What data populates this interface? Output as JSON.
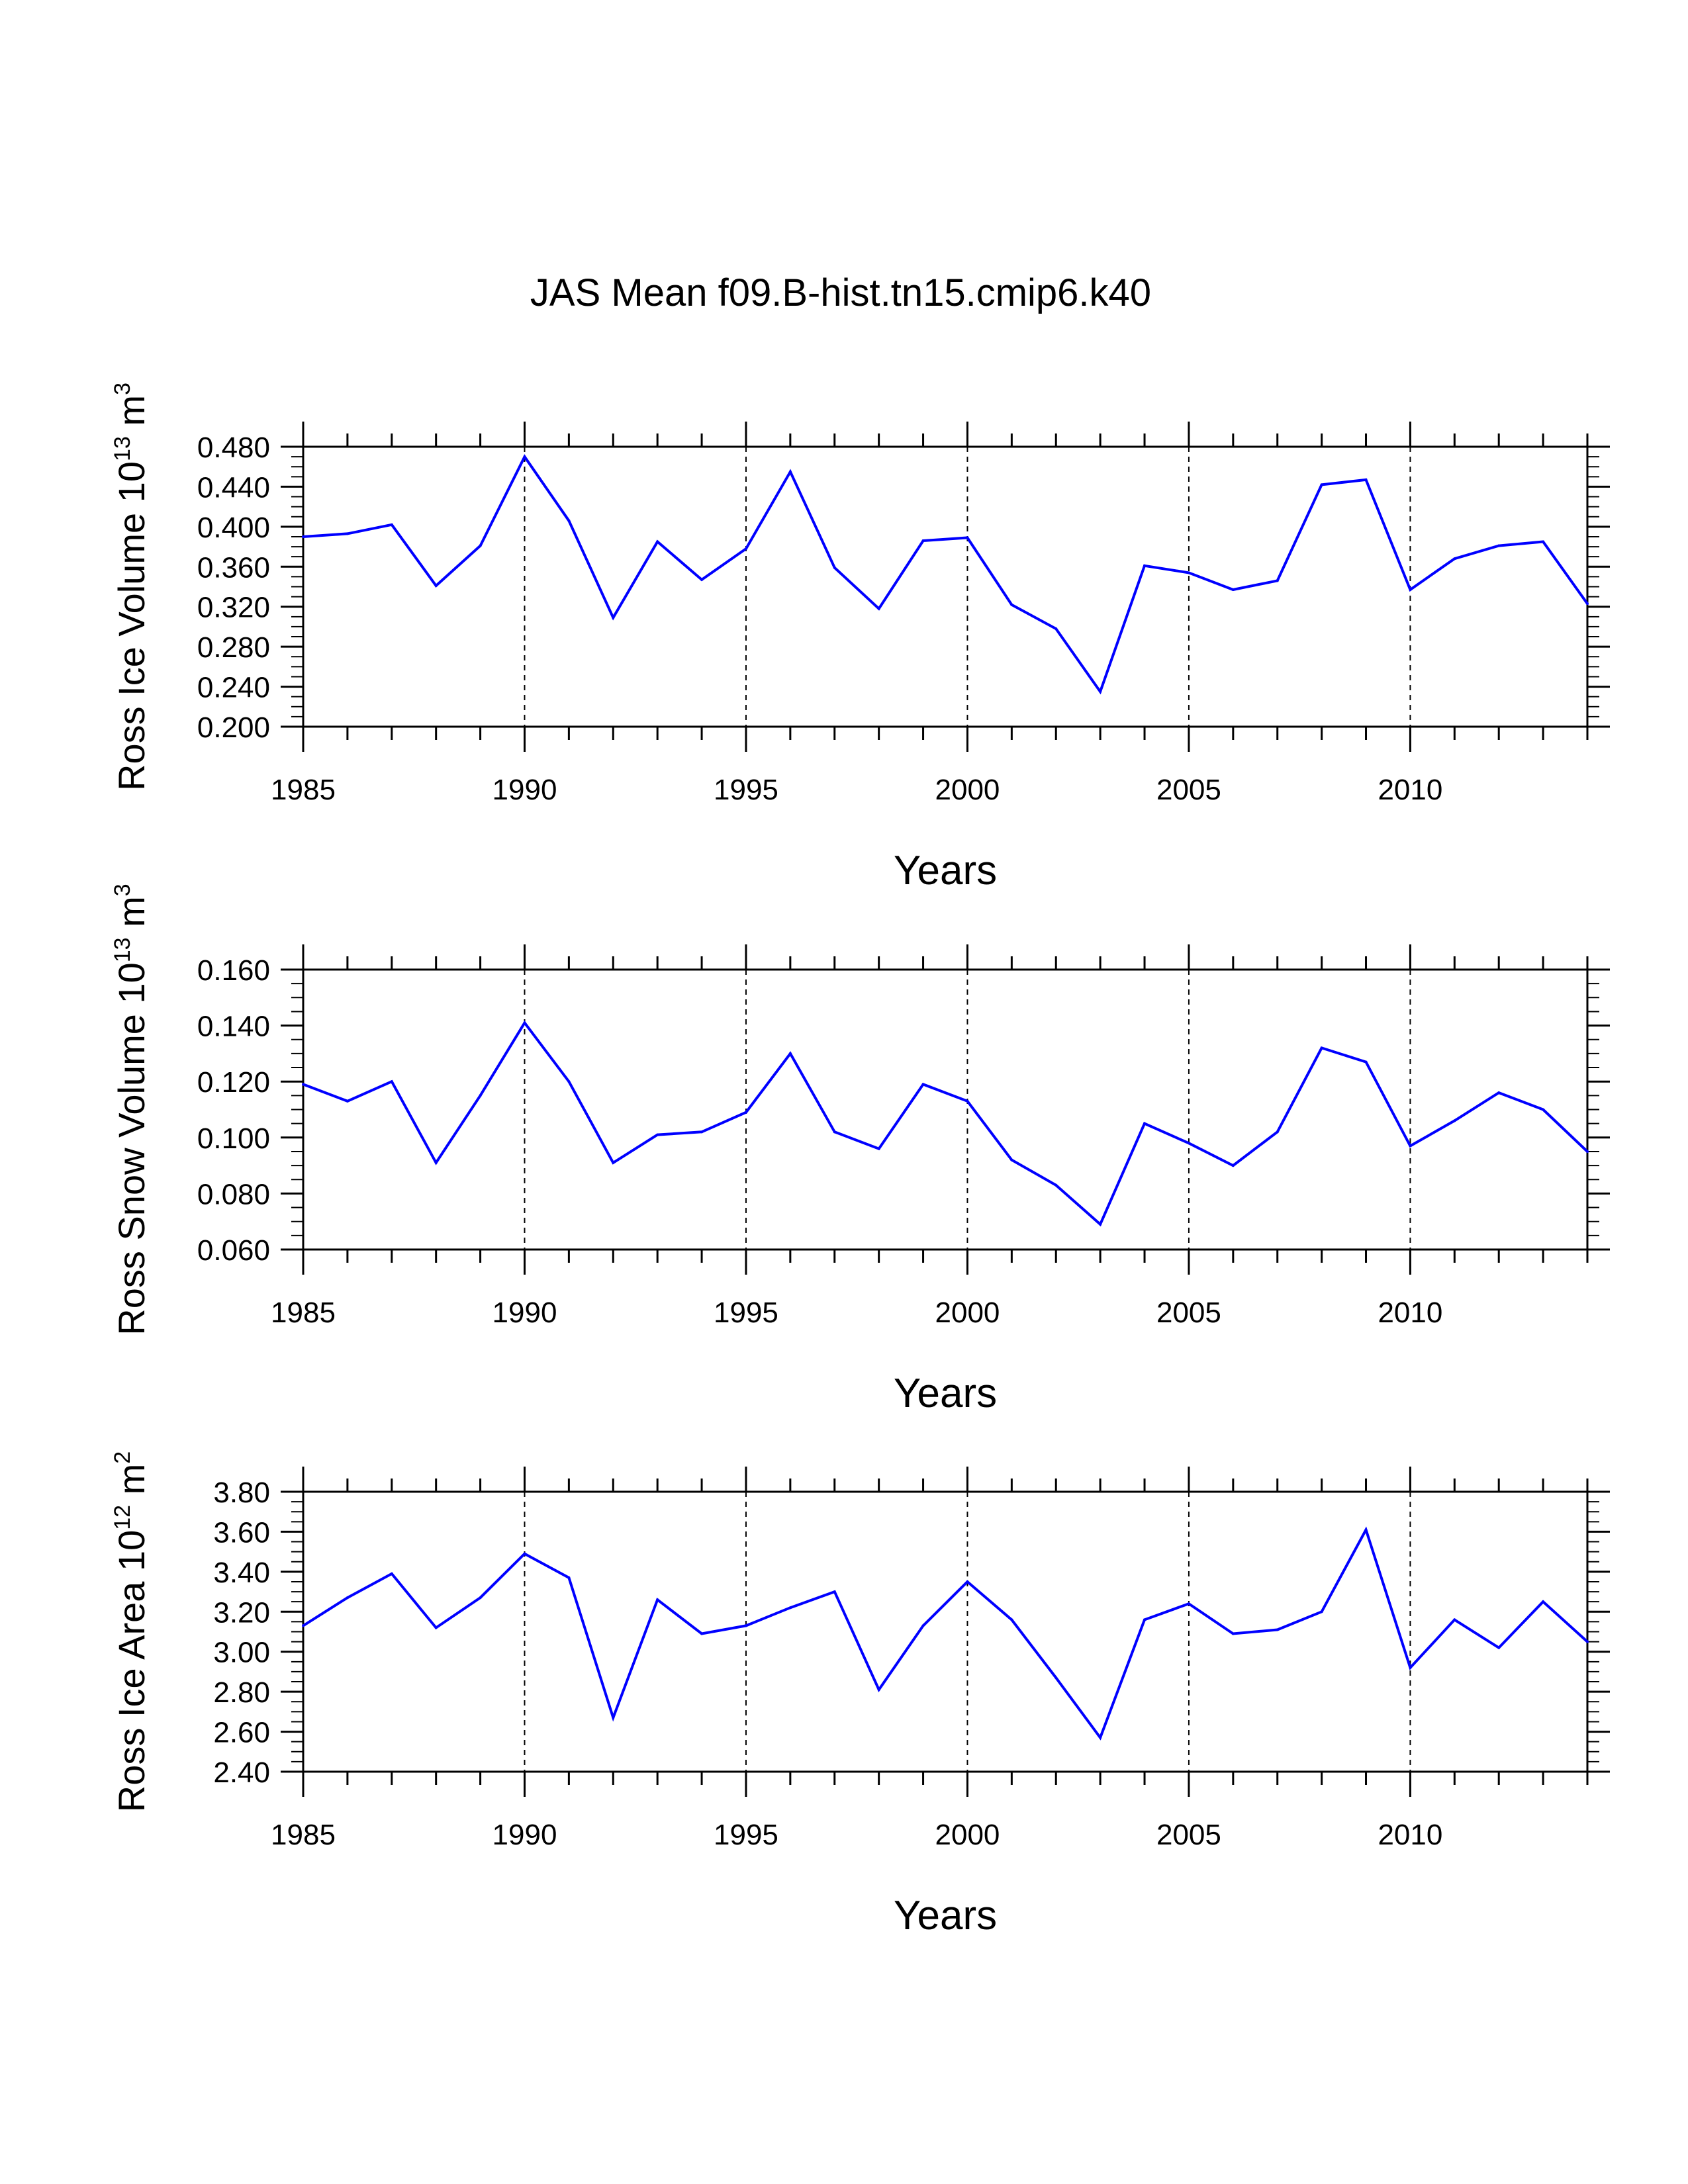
{
  "chart_data": [
    {
      "type": "line",
      "title": "JAS Mean f09.B-hist.tn15.cmip6.k40",
      "xlabel": "Years",
      "ylabel": {
        "prefix": "Ross Ice Volume 10",
        "exp1": "13",
        "mid": " m",
        "exp2": "3"
      },
      "x": [
        1985,
        1986,
        1987,
        1988,
        1989,
        1990,
        1991,
        1992,
        1993,
        1994,
        1995,
        1996,
        1997,
        1998,
        1999,
        2000,
        2001,
        2002,
        2003,
        2004,
        2005,
        2006,
        2007,
        2008,
        2009,
        2010,
        2011,
        2012,
        2013,
        2014
      ],
      "values": [
        0.39,
        0.393,
        0.402,
        0.341,
        0.381,
        0.47,
        0.406,
        0.309,
        0.385,
        0.347,
        0.378,
        0.455,
        0.359,
        0.318,
        0.386,
        0.389,
        0.322,
        0.298,
        0.235,
        0.361,
        0.354,
        0.337,
        0.346,
        0.442,
        0.447,
        0.337,
        0.368,
        0.381,
        0.385,
        0.323
      ],
      "xlim": [
        1985,
        2014
      ],
      "ylim": [
        0.2,
        0.48
      ],
      "yticks": [
        "0.200",
        "0.240",
        "0.280",
        "0.320",
        "0.360",
        "0.400",
        "0.440",
        "0.480"
      ],
      "xticks": [
        "1985",
        "1990",
        "1995",
        "2000",
        "2005",
        "2010"
      ],
      "vlines": [
        1990,
        1995,
        2000,
        2005,
        2010
      ],
      "color": "#0000ff"
    },
    {
      "type": "line",
      "title": "",
      "xlabel": "Years",
      "ylabel": {
        "prefix": "Ross Snow Volume 10",
        "exp1": "13",
        "mid": " m",
        "exp2": "3"
      },
      "x": [
        1985,
        1986,
        1987,
        1988,
        1989,
        1990,
        1991,
        1992,
        1993,
        1994,
        1995,
        1996,
        1997,
        1998,
        1999,
        2000,
        2001,
        2002,
        2003,
        2004,
        2005,
        2006,
        2007,
        2008,
        2009,
        2010,
        2011,
        2012,
        2013,
        2014
      ],
      "values": [
        0.119,
        0.113,
        0.12,
        0.091,
        0.115,
        0.141,
        0.12,
        0.091,
        0.101,
        0.102,
        0.109,
        0.13,
        0.102,
        0.096,
        0.119,
        0.113,
        0.092,
        0.083,
        0.069,
        0.105,
        0.098,
        0.09,
        0.102,
        0.132,
        0.127,
        0.097,
        0.106,
        0.116,
        0.11,
        0.095
      ],
      "xlim": [
        1985,
        2014
      ],
      "ylim": [
        0.06,
        0.16
      ],
      "yticks": [
        "0.060",
        "0.080",
        "0.100",
        "0.120",
        "0.140",
        "0.160"
      ],
      "xticks": [
        "1985",
        "1990",
        "1995",
        "2000",
        "2005",
        "2010"
      ],
      "vlines": [
        1990,
        1995,
        2000,
        2005,
        2010
      ],
      "color": "#0000ff"
    },
    {
      "type": "line",
      "title": "",
      "xlabel": "Years",
      "ylabel": {
        "prefix": "Ross Ice Area 10",
        "exp1": "12",
        "mid": " m",
        "exp2": "2"
      },
      "x": [
        1985,
        1986,
        1987,
        1988,
        1989,
        1990,
        1991,
        1992,
        1993,
        1994,
        1995,
        1996,
        1997,
        1998,
        1999,
        2000,
        2001,
        2002,
        2003,
        2004,
        2005,
        2006,
        2007,
        2008,
        2009,
        2010,
        2011,
        2012,
        2013,
        2014
      ],
      "values": [
        3.13,
        3.27,
        3.39,
        3.12,
        3.27,
        3.49,
        3.37,
        2.67,
        3.26,
        3.09,
        3.13,
        3.22,
        3.3,
        2.81,
        3.13,
        3.35,
        3.16,
        2.87,
        2.57,
        3.16,
        3.24,
        3.09,
        3.11,
        3.2,
        3.61,
        2.92,
        3.16,
        3.02,
        3.25,
        3.05
      ],
      "xlim": [
        1985,
        2014
      ],
      "ylim": [
        2.4,
        3.8
      ],
      "yticks": [
        "2.40",
        "2.60",
        "2.80",
        "3.00",
        "3.20",
        "3.40",
        "3.60",
        "3.80"
      ],
      "xticks": [
        "1985",
        "1990",
        "1995",
        "2000",
        "2005",
        "2010"
      ],
      "vlines": [
        1990,
        1995,
        2000,
        2005,
        2010
      ],
      "color": "#0000ff"
    }
  ]
}
